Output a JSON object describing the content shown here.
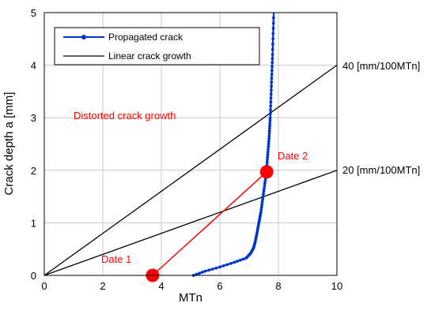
{
  "chart_data": {
    "type": "line",
    "xlabel": "MTn",
    "ylabel": "Crack depth a [mm]",
    "xlim": [
      0,
      10
    ],
    "ylim": [
      0,
      5
    ],
    "xticks": [
      0,
      2,
      4,
      6,
      8,
      10
    ],
    "yticks": [
      0,
      1,
      2,
      3,
      4,
      5
    ],
    "grid": true,
    "legend": {
      "placement": "top-left",
      "entries": [
        "Propagated crack",
        "Linear crack growth"
      ]
    },
    "colors": {
      "propagated": "#0033cc",
      "linear": "#000000",
      "distorted": "#ff0000"
    },
    "series": [
      {
        "name": "Propagated crack",
        "x": [
          5.1,
          5.5,
          6.0,
          6.5,
          6.9,
          7.05,
          7.15,
          7.2,
          7.25,
          7.3,
          7.35,
          7.4,
          7.45,
          7.5,
          7.55,
          7.6,
          7.62,
          7.65,
          7.68,
          7.7,
          7.72,
          7.74,
          7.76,
          7.78,
          7.8,
          7.82,
          7.84
        ],
        "y": [
          0.0,
          0.08,
          0.16,
          0.25,
          0.33,
          0.42,
          0.52,
          0.62,
          0.75,
          0.9,
          1.05,
          1.2,
          1.4,
          1.6,
          1.8,
          2.0,
          2.2,
          2.4,
          2.6,
          2.8,
          3.0,
          3.3,
          3.6,
          3.9,
          4.2,
          4.6,
          5.0
        ]
      },
      {
        "name": "Linear crack growth",
        "x": [
          0,
          10
        ],
        "y": [
          0,
          4
        ]
      },
      {
        "name": "Linear crack growth",
        "x": [
          0,
          10
        ],
        "y": [
          0,
          2
        ]
      }
    ],
    "distorted": {
      "x": [
        3.7,
        7.6
      ],
      "y": [
        0,
        1.97
      ]
    },
    "annotations": {
      "line40": "40 [mm/100MTn]",
      "line20": "20 [mm/100MTn]",
      "distorted": "Distorted crack growth",
      "date1": "Date 1",
      "date2": "Date 2"
    }
  }
}
